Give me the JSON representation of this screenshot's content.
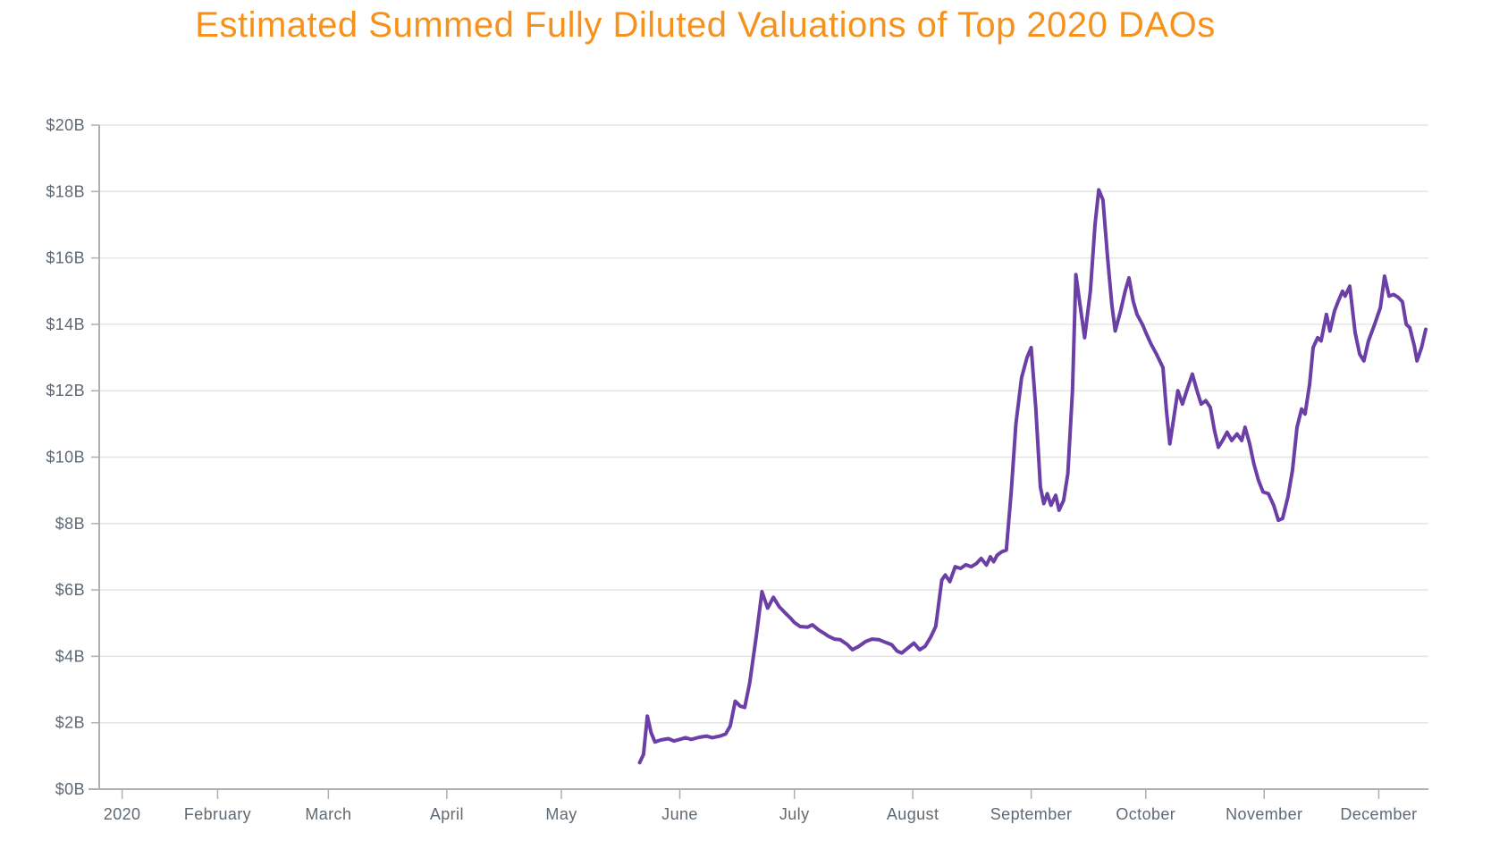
{
  "page": {
    "background": "#FFFFFF"
  },
  "chart_data": {
    "type": "line",
    "title": "Estimated Summed Fully Diluted Valuations of Top 2020 DAOs",
    "title_color": "#F5921E",
    "legend": "none",
    "grid": true,
    "x": {
      "unit": "day_of_year_2020",
      "range": [
        0,
        348
      ],
      "ticks": [
        {
          "day": 6,
          "label": "2020"
        },
        {
          "day": 31,
          "label": "February"
        },
        {
          "day": 60,
          "label": "March"
        },
        {
          "day": 91,
          "label": "April"
        },
        {
          "day": 121,
          "label": "May"
        },
        {
          "day": 152,
          "label": "June"
        },
        {
          "day": 182,
          "label": "July"
        },
        {
          "day": 213,
          "label": "August"
        },
        {
          "day": 244,
          "label": "September"
        },
        {
          "day": 274,
          "label": "October"
        },
        {
          "day": 305,
          "label": "November"
        },
        {
          "day": 335,
          "label": "December"
        }
      ]
    },
    "y": {
      "range": [
        0,
        20
      ],
      "tick_step": 2,
      "tick_labels": [
        "$0B",
        "$2B",
        "$4B",
        "$6B",
        "$8B",
        "$10B",
        "$12B",
        "$14B",
        "$16B",
        "$18B",
        "$20B"
      ],
      "unit": "USD billions",
      "axis_color": "#ACAFB4",
      "grid_color": "#E5E5E6",
      "label_color": "#5E6973"
    },
    "series": [
      {
        "color": "#6B3FA5",
        "stroke_width": 4,
        "points": [
          [
            141.5,
            0.8
          ],
          [
            142.5,
            1.05
          ],
          [
            143.5,
            2.2
          ],
          [
            144.5,
            1.7
          ],
          [
            145.5,
            1.42
          ],
          [
            147,
            1.48
          ],
          [
            149,
            1.52
          ],
          [
            150.5,
            1.45
          ],
          [
            152,
            1.5
          ],
          [
            153.5,
            1.55
          ],
          [
            155,
            1.5
          ],
          [
            157,
            1.56
          ],
          [
            159,
            1.6
          ],
          [
            160.5,
            1.55
          ],
          [
            162.5,
            1.6
          ],
          [
            164,
            1.66
          ],
          [
            165.2,
            1.9
          ],
          [
            166.5,
            2.65
          ],
          [
            167.8,
            2.5
          ],
          [
            169,
            2.46
          ],
          [
            170.3,
            3.2
          ],
          [
            172,
            4.6
          ],
          [
            173.5,
            5.95
          ],
          [
            175,
            5.45
          ],
          [
            176.5,
            5.78
          ],
          [
            178,
            5.5
          ],
          [
            179.5,
            5.32
          ],
          [
            181,
            5.15
          ],
          [
            182,
            5.02
          ],
          [
            183.5,
            4.9
          ],
          [
            185.5,
            4.88
          ],
          [
            186.7,
            4.95
          ],
          [
            188.3,
            4.8
          ],
          [
            189.7,
            4.7
          ],
          [
            191,
            4.6
          ],
          [
            192.5,
            4.52
          ],
          [
            194,
            4.5
          ],
          [
            195.8,
            4.36
          ],
          [
            197.2,
            4.2
          ],
          [
            198.8,
            4.3
          ],
          [
            200.7,
            4.45
          ],
          [
            202.3,
            4.52
          ],
          [
            204.2,
            4.5
          ],
          [
            205.9,
            4.42
          ],
          [
            207.5,
            4.35
          ],
          [
            208.9,
            4.16
          ],
          [
            210.1,
            4.1
          ],
          [
            211.7,
            4.25
          ],
          [
            213.3,
            4.4
          ],
          [
            214.8,
            4.2
          ],
          [
            216.2,
            4.3
          ],
          [
            217.6,
            4.56
          ],
          [
            219,
            4.9
          ],
          [
            220.6,
            6.3
          ],
          [
            221.5,
            6.45
          ],
          [
            222.7,
            6.25
          ],
          [
            224.1,
            6.7
          ],
          [
            225.5,
            6.65
          ],
          [
            226.9,
            6.76
          ],
          [
            228.3,
            6.7
          ],
          [
            229.7,
            6.8
          ],
          [
            230.9,
            6.95
          ],
          [
            232.3,
            6.75
          ],
          [
            233.3,
            7.0
          ],
          [
            234.2,
            6.85
          ],
          [
            235.1,
            7.05
          ],
          [
            236.3,
            7.15
          ],
          [
            237.5,
            7.2
          ],
          [
            238.8,
            9.0
          ],
          [
            240,
            11.0
          ],
          [
            241.5,
            12.4
          ],
          [
            242.9,
            13.0
          ],
          [
            244,
            13.3
          ],
          [
            245.2,
            11.5
          ],
          [
            246.4,
            9.1
          ],
          [
            247.3,
            8.6
          ],
          [
            248.2,
            8.9
          ],
          [
            249.2,
            8.55
          ],
          [
            250.4,
            8.85
          ],
          [
            251.3,
            8.4
          ],
          [
            252.5,
            8.7
          ],
          [
            253.6,
            9.5
          ],
          [
            254.8,
            12.0
          ],
          [
            255.7,
            15.5
          ],
          [
            256.9,
            14.5
          ],
          [
            258,
            13.6
          ],
          [
            259.5,
            15.0
          ],
          [
            260.7,
            17.0
          ],
          [
            261.7,
            18.05
          ],
          [
            262.8,
            17.75
          ],
          [
            264,
            16.0
          ],
          [
            265.1,
            14.6
          ],
          [
            266,
            13.8
          ],
          [
            267.4,
            14.4
          ],
          [
            268.6,
            15.0
          ],
          [
            269.6,
            15.4
          ],
          [
            270.7,
            14.7
          ],
          [
            271.7,
            14.3
          ],
          [
            273.1,
            14.0
          ],
          [
            274.2,
            13.7
          ],
          [
            275.4,
            13.4
          ],
          [
            276.8,
            13.1
          ],
          [
            278.5,
            12.7
          ],
          [
            279.4,
            11.4
          ],
          [
            280.3,
            10.4
          ],
          [
            281.5,
            11.3
          ],
          [
            282.4,
            12.0
          ],
          [
            283.6,
            11.6
          ],
          [
            285,
            12.1
          ],
          [
            286.2,
            12.5
          ],
          [
            287.4,
            12.0
          ],
          [
            288.5,
            11.6
          ],
          [
            289.7,
            11.7
          ],
          [
            290.9,
            11.5
          ],
          [
            292,
            10.8
          ],
          [
            293,
            10.3
          ],
          [
            294.1,
            10.5
          ],
          [
            295.3,
            10.75
          ],
          [
            296.5,
            10.5
          ],
          [
            297.9,
            10.7
          ],
          [
            299.1,
            10.5
          ],
          [
            300,
            10.9
          ],
          [
            301.2,
            10.4
          ],
          [
            302.3,
            9.8
          ],
          [
            303.5,
            9.3
          ],
          [
            304.7,
            8.95
          ],
          [
            306.1,
            8.9
          ],
          [
            307.5,
            8.55
          ],
          [
            308.7,
            8.1
          ],
          [
            309.8,
            8.15
          ],
          [
            311.2,
            8.8
          ],
          [
            312.4,
            9.6
          ],
          [
            313.6,
            10.9
          ],
          [
            314.8,
            11.45
          ],
          [
            315.7,
            11.3
          ],
          [
            316.9,
            12.2
          ],
          [
            317.8,
            13.3
          ],
          [
            319,
            13.6
          ],
          [
            319.9,
            13.5
          ],
          [
            321.3,
            14.3
          ],
          [
            322.2,
            13.8
          ],
          [
            323.4,
            14.4
          ],
          [
            324.4,
            14.7
          ],
          [
            325.5,
            15.0
          ],
          [
            326.2,
            14.85
          ],
          [
            327.4,
            15.15
          ],
          [
            328.8,
            13.75
          ],
          [
            330,
            13.1
          ],
          [
            331.1,
            12.9
          ],
          [
            332.3,
            13.5
          ],
          [
            333.9,
            14.0
          ],
          [
            335.4,
            14.5
          ],
          [
            336.5,
            15.45
          ],
          [
            337.7,
            14.85
          ],
          [
            338.9,
            14.9
          ],
          [
            340,
            14.82
          ],
          [
            341.2,
            14.68
          ],
          [
            342.2,
            14.0
          ],
          [
            343.1,
            13.9
          ],
          [
            344.3,
            13.35
          ],
          [
            345,
            12.9
          ],
          [
            346.2,
            13.3
          ],
          [
            347.3,
            13.85
          ]
        ]
      }
    ]
  }
}
